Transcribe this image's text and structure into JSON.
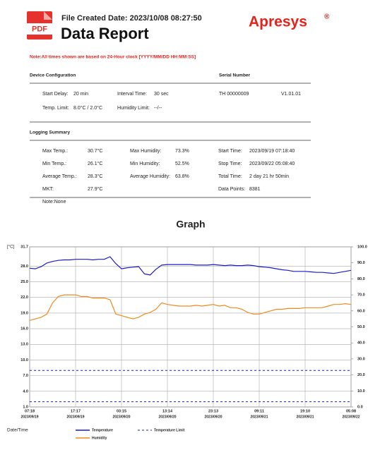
{
  "header": {
    "icon": "PDF",
    "file_created_date": "File Created Date: 2023/10/08 08:27:50",
    "title": "Data Report",
    "brand": "Apresys",
    "brand_mark": "®"
  },
  "note": "Note:All times shown are based on 24-Hour clock [YYYY/MM/DD HH:MM:SS]",
  "device_configuration": {
    "heading": "Device Configuration",
    "rows": [
      [
        {
          "label": "Start Delay:",
          "value": "20 min"
        },
        {
          "label": "Interval Time:",
          "value": "30 sec"
        }
      ],
      [
        {
          "label": "Temp. Limit:",
          "value": "8.0°C / 2.0°C"
        },
        {
          "label": "Humidity Limit:",
          "value": "--/--"
        }
      ]
    ]
  },
  "serial_number": {
    "heading": "Serial Number",
    "id": "TH  00000009",
    "version": "V1.01.01"
  },
  "logging_summary": {
    "heading": "Logging Summary",
    "rows": [
      [
        {
          "label": "Max Temp.:",
          "value": "30.7°C"
        },
        {
          "label": "Max Humidity:",
          "value": "73.3%"
        },
        {
          "label": "Start Time:",
          "value": "2023/09/19 07:18:40"
        }
      ],
      [
        {
          "label": "Min Temp.:",
          "value": "26.1°C"
        },
        {
          "label": "Min Humidity:",
          "value": "52.5%"
        },
        {
          "label": "Stop Time:",
          "value": "2023/09/22 05:08:40"
        }
      ],
      [
        {
          "label": "Average Temp.:",
          "value": "28.3°C"
        },
        {
          "label": "Average Humidity:",
          "value": "63.8%"
        },
        {
          "label": "Total Time:",
          "value": "2 day 21 hr 50min"
        }
      ],
      [
        {
          "label": "MKT:",
          "value": "27.9°C"
        },
        null,
        {
          "label": "Data Points:",
          "value": "8381"
        }
      ]
    ],
    "note": "Note:None"
  },
  "chart_data": {
    "type": "line",
    "title": "Graph",
    "y_label": "[°C]",
    "x_label": "Date/Time",
    "grid": true,
    "categories": [
      "07:18",
      null,
      null,
      null,
      null,
      null,
      null,
      null,
      "17:17",
      null,
      null,
      null,
      null,
      null,
      null,
      null,
      "03:15",
      null,
      null,
      null,
      null,
      null,
      null,
      null,
      "13:14",
      null,
      null,
      null,
      null,
      null,
      null,
      null,
      "23:13",
      null,
      null,
      null,
      null,
      null,
      null,
      null,
      "09:11",
      null,
      null,
      null,
      null,
      null,
      null,
      null,
      "19:10",
      null,
      null,
      null,
      null,
      null,
      null,
      null,
      "05:08"
    ],
    "category_dates": [
      "2023/09/19",
      null,
      null,
      null,
      null,
      null,
      null,
      null,
      "2023/09/19",
      null,
      null,
      null,
      null,
      null,
      null,
      null,
      "2023/09/20",
      null,
      null,
      null,
      null,
      null,
      null,
      null,
      "2023/09/20",
      null,
      null,
      null,
      null,
      null,
      null,
      null,
      "2023/09/20",
      null,
      null,
      null,
      null,
      null,
      null,
      null,
      "2023/09/21",
      null,
      null,
      null,
      null,
      null,
      null,
      null,
      "2023/09/21",
      null,
      null,
      null,
      null,
      null,
      null,
      null,
      "2023/09/22"
    ],
    "series": [
      {
        "name": "Temperature",
        "color": "#1c1cc8",
        "values": [
          27.6,
          27.5,
          27.9,
          28.6,
          28.9,
          29.1,
          29.2,
          29.2,
          29.3,
          29.3,
          29.3,
          29.2,
          29.3,
          29.3,
          29.8,
          28.5,
          27.5,
          27.7,
          27.8,
          27.9,
          26.5,
          26.3,
          27.4,
          28.2,
          28.3,
          28.3,
          28.3,
          28.3,
          28.3,
          28.2,
          28.2,
          28.2,
          28.3,
          28.2,
          28.1,
          28.2,
          28.1,
          28.1,
          28.2,
          28.1,
          27.9,
          27.8,
          27.7,
          27.5,
          27.3,
          27.2,
          27.0,
          27.0,
          27.0,
          26.9,
          26.8,
          26.8,
          26.7,
          26.6,
          26.8,
          27.0,
          27.2
        ]
      },
      {
        "name": "Humidity",
        "color": "#f28a1e",
        "axis": "y2",
        "values": [
          54,
          55,
          56,
          58,
          65,
          69,
          70,
          70,
          70,
          69,
          69,
          68,
          68,
          68,
          67,
          58,
          57,
          56,
          55,
          56,
          58,
          59,
          61,
          65,
          64,
          63.5,
          63,
          63,
          63,
          63.5,
          63,
          63.5,
          64,
          63,
          63.5,
          62,
          62,
          61,
          59,
          58,
          58,
          59,
          60,
          61,
          61,
          61.5,
          61.5,
          61.5,
          62,
          62,
          62,
          62,
          63,
          64,
          64,
          64.5,
          64
        ]
      }
    ],
    "limits": {
      "name": "Temperature Limit",
      "color": "#1c1cc8",
      "values": [
        8.0,
        2.0
      ]
    },
    "ylim": [
      1.0,
      31.7
    ],
    "yticks": [
      {
        "value": 1,
        "label": "1.0"
      },
      {
        "value": 4,
        "label": "4.0"
      },
      {
        "value": 7,
        "label": "7.0"
      },
      {
        "value": 10,
        "label": "10.0"
      },
      {
        "value": 13,
        "label": "13.0"
      },
      {
        "value": 16,
        "label": "16.0"
      },
      {
        "value": 19,
        "label": "19.0"
      },
      {
        "value": 22,
        "label": "22.0"
      },
      {
        "value": 25,
        "label": "25.0"
      },
      {
        "value": 28,
        "label": "28.0"
      },
      31.7
    ],
    "y2lim": [
      0,
      100
    ],
    "y2ticks": [
      {
        "value": 0,
        "label": "0.0"
      },
      {
        "value": 10,
        "label": "10.0"
      },
      {
        "value": 20,
        "label": "20.0"
      },
      {
        "value": 30,
        "label": "30.0"
      },
      {
        "value": 40,
        "label": "40.0"
      },
      {
        "value": 50,
        "label": "50.0"
      },
      {
        "value": 60,
        "label": "60.0"
      },
      {
        "value": 70,
        "label": "70.0"
      },
      {
        "value": 80,
        "label": "80.0"
      },
      {
        "value": 90,
        "label": "90.0"
      },
      {
        "value": 100,
        "label": "100.0"
      }
    ]
  }
}
